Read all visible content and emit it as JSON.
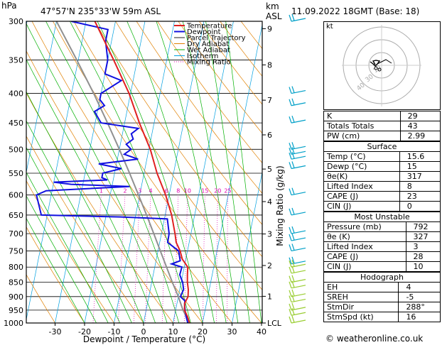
{
  "header": {
    "location": "47°57'N 235°33'W 59m ASL",
    "date": "11.09.2022 18GMT (Base: 18)",
    "left_unit": "hPa",
    "km_label": "km",
    "asl_label": "ASL"
  },
  "axes": {
    "xlabel": "Dewpoint / Temperature (°C)",
    "mixing_label": "Mixing Ratio (g/kg)",
    "lcl_label": "LCL"
  },
  "legend": [
    "Temperature",
    "Dewpoint",
    "Parcel Trajectory",
    "Dry Adiabat",
    "Wet Adiabat",
    "Isotherm",
    "Mixing Ratio"
  ],
  "colors": {
    "temperature": "#e02020",
    "dewpoint": "#1010e0",
    "parcel": "#909090",
    "dry_adiabat": "#e08000",
    "wet_adiabat": "#00b000",
    "isotherm": "#00a0e0",
    "mixing_ratio": "#e000b0"
  },
  "chart_data": {
    "type": "skew-t",
    "pressure_levels": [
      300,
      350,
      400,
      450,
      500,
      550,
      600,
      650,
      700,
      750,
      800,
      850,
      900,
      950,
      1000
    ],
    "temp_ticks": [
      -30,
      -20,
      -10,
      0,
      10,
      20,
      30,
      40
    ],
    "km_ticks": [
      {
        "km": "9",
        "p": 309
      },
      {
        "km": "8",
        "p": 357
      },
      {
        "km": "7",
        "p": 411
      },
      {
        "km": "6",
        "p": 472
      },
      {
        "km": "5",
        "p": 541
      },
      {
        "km": "4",
        "p": 616
      },
      {
        "km": "3",
        "p": 701
      },
      {
        "km": "2",
        "p": 795
      },
      {
        "km": "1",
        "p": 899
      },
      {
        "km": "LCL",
        "p": 1000
      }
    ],
    "mixing_ratio_labels": [
      "1",
      "2",
      "3",
      "4",
      "6",
      "8",
      "10",
      "15",
      "20",
      "25"
    ],
    "temperature": [
      [
        1000,
        15.6
      ],
      [
        975,
        14.5
      ],
      [
        950,
        13.0
      ],
      [
        925,
        12.6
      ],
      [
        900,
        13.3
      ],
      [
        875,
        12.9
      ],
      [
        850,
        12.1
      ],
      [
        825,
        11.6
      ],
      [
        800,
        11.2
      ],
      [
        775,
        8.8
      ],
      [
        750,
        7.5
      ],
      [
        725,
        5.6
      ],
      [
        700,
        4.6
      ],
      [
        650,
        2.2
      ],
      [
        600,
        -1.2
      ],
      [
        550,
        -5.6
      ],
      [
        500,
        -9.5
      ],
      [
        450,
        -15
      ],
      [
        400,
        -20.5
      ],
      [
        350,
        -28
      ],
      [
        300,
        -37
      ]
    ],
    "dewpoint": [
      [
        1000,
        15
      ],
      [
        975,
        14
      ],
      [
        950,
        13.2
      ],
      [
        925,
        12.6
      ],
      [
        915,
        12.5
      ],
      [
        900,
        10.7
      ],
      [
        875,
        11.3
      ],
      [
        850,
        10.5
      ],
      [
        825,
        9.0
      ],
      [
        800,
        9.2
      ],
      [
        790,
        5.5
      ],
      [
        780,
        8.2
      ],
      [
        750,
        7.0
      ],
      [
        725,
        2.7
      ],
      [
        700,
        2.6
      ],
      [
        660,
        1.0
      ],
      [
        655,
        -15
      ],
      [
        650,
        -42
      ],
      [
        600,
        -45
      ],
      [
        590,
        -42
      ],
      [
        580,
        -14
      ],
      [
        575,
        -34
      ],
      [
        570,
        -40
      ],
      [
        565,
        -22
      ],
      [
        560,
        -24
      ],
      [
        550,
        -24
      ],
      [
        540,
        -18
      ],
      [
        530,
        -26
      ],
      [
        520,
        -13
      ],
      [
        510,
        -18
      ],
      [
        500,
        -16
      ],
      [
        490,
        -18
      ],
      [
        480,
        -16
      ],
      [
        470,
        -17
      ],
      [
        460,
        -15
      ],
      [
        450,
        -28
      ],
      [
        430,
        -31
      ],
      [
        420,
        -28
      ],
      [
        410,
        -30
      ],
      [
        400,
        -30
      ],
      [
        380,
        -24
      ],
      [
        370,
        -30
      ],
      [
        350,
        -30
      ],
      [
        325,
        -32
      ],
      [
        310,
        -32
      ],
      [
        300,
        -45
      ]
    ],
    "parcel": [
      [
        1000,
        15.6
      ],
      [
        950,
        12.5
      ],
      [
        900,
        10.0
      ],
      [
        850,
        7.0
      ],
      [
        800,
        4.0
      ],
      [
        750,
        0.8
      ],
      [
        700,
        -2.6
      ],
      [
        650,
        -6.3
      ],
      [
        600,
        -10.4
      ],
      [
        550,
        -14.9
      ],
      [
        500,
        -20
      ],
      [
        450,
        -25.8
      ],
      [
        400,
        -32.5
      ],
      [
        350,
        -40.5
      ],
      [
        300,
        -50
      ]
    ]
  },
  "hodograph": {
    "label": "kt",
    "ring_labels": [
      "40",
      "30",
      "10"
    ]
  },
  "indices": {
    "top": [
      {
        "k": "K",
        "v": "29"
      },
      {
        "k": "Totals Totals",
        "v": "43"
      },
      {
        "k": "PW (cm)",
        "v": "2.99"
      }
    ],
    "surface": {
      "title": "Surface",
      "rows": [
        {
          "k": "Temp (°C)",
          "v": "15.6"
        },
        {
          "k": "Dewp (°C)",
          "v": "15"
        },
        {
          "k": "θe(K)",
          "v": "317"
        },
        {
          "k": "Lifted Index",
          "v": "8"
        },
        {
          "k": "CAPE (J)",
          "v": "23"
        },
        {
          "k": "CIN (J)",
          "v": "0"
        }
      ]
    },
    "unstable": {
      "title": "Most Unstable",
      "rows": [
        {
          "k": "Pressure (mb)",
          "v": "792"
        },
        {
          "k": "θe (K)",
          "v": "327"
        },
        {
          "k": "Lifted Index",
          "v": "3"
        },
        {
          "k": "CAPE (J)",
          "v": "28"
        },
        {
          "k": "CIN (J)",
          "v": "10"
        }
      ]
    },
    "hodo": {
      "title": "Hodograph",
      "rows": [
        {
          "k": "EH",
          "v": "4"
        },
        {
          "k": "SREH",
          "v": "-5"
        },
        {
          "k": "StmDir",
          "v": "288°"
        },
        {
          "k": "StmSpd (kt)",
          "v": "16"
        }
      ]
    }
  },
  "credit": "© weatheronline.co.uk"
}
